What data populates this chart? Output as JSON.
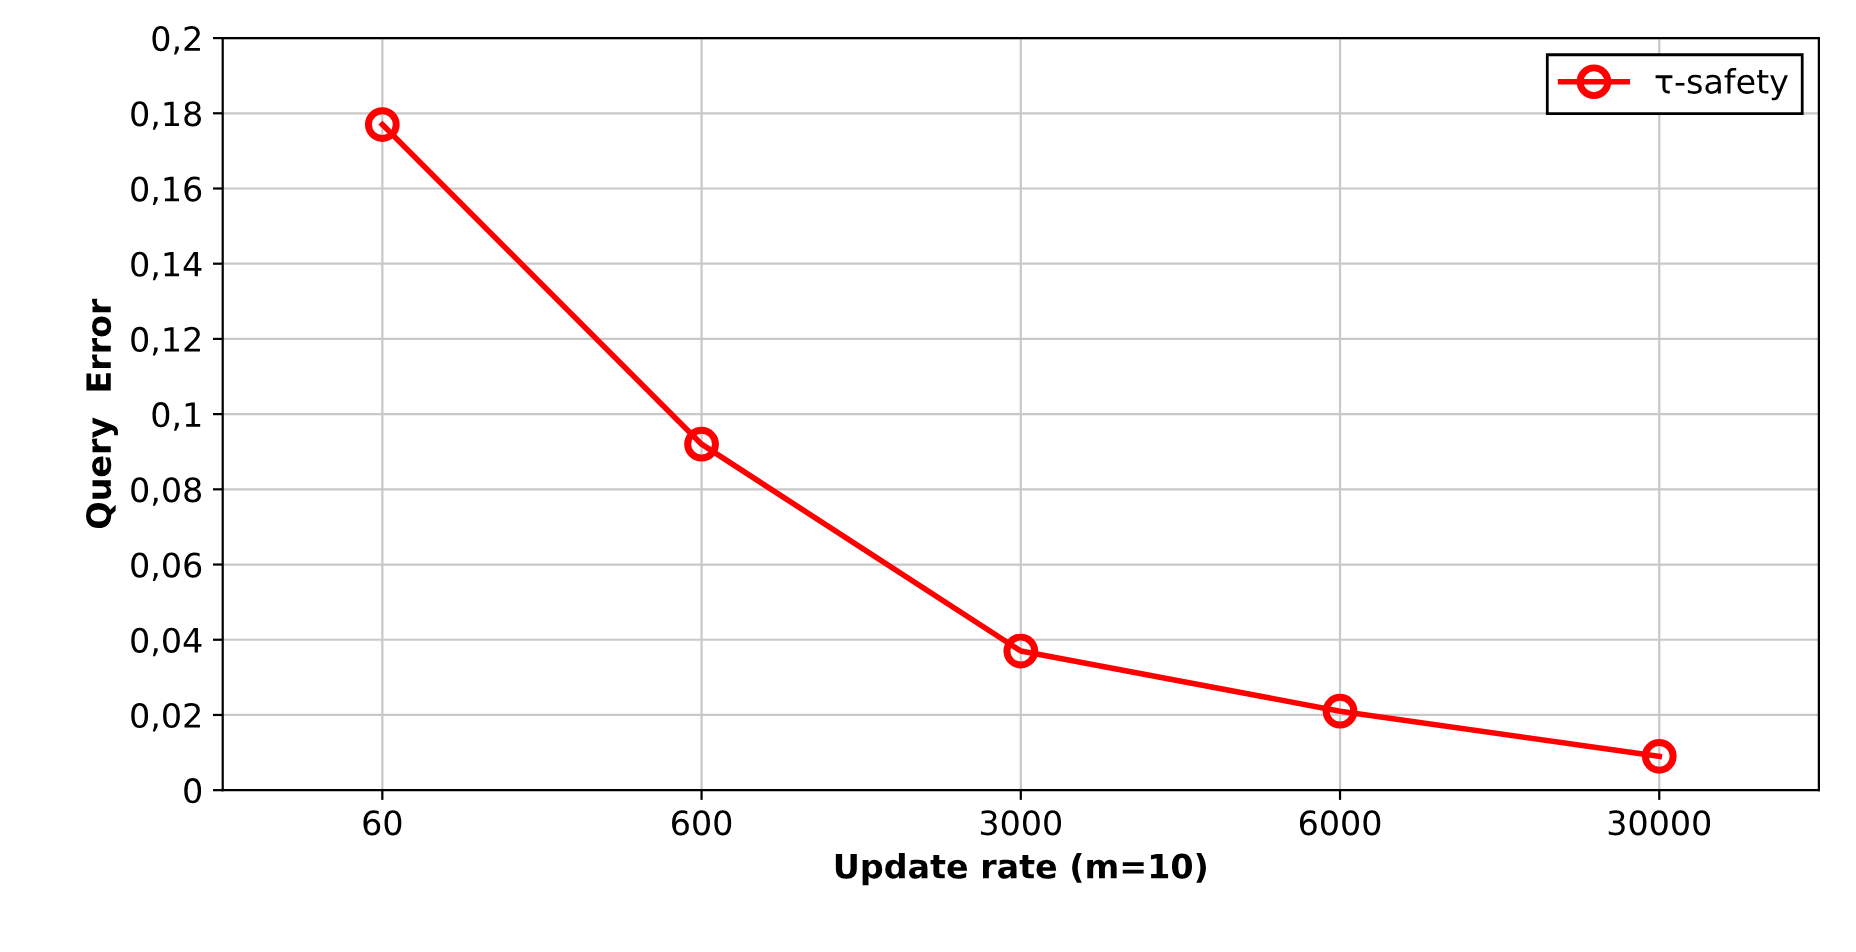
{
  "chart_data": {
    "type": "line",
    "xlabel": "Update rate (m=10)",
    "ylabel": "Query  Error",
    "categories": [
      "60",
      "600",
      "3000",
      "6000",
      "30000"
    ],
    "series": [
      {
        "name": "τ-safety",
        "color": "#ff0000",
        "values": [
          0.177,
          0.092,
          0.037,
          0.021,
          0.009
        ]
      }
    ],
    "ylim": [
      0,
      0.2
    ],
    "yticks": [
      0,
      {
        "value": 0.02,
        "label": "0,02"
      },
      {
        "value": 0.04,
        "label": "0,04"
      },
      {
        "value": 0.06,
        "label": "0,06"
      },
      {
        "value": 0.08,
        "label": "0,08"
      },
      {
        "value": 0.1,
        "label": "0,1"
      },
      {
        "value": 0.12,
        "label": "0,12"
      },
      {
        "value": 0.14,
        "label": "0,14"
      },
      {
        "value": 0.16,
        "label": "0,16"
      },
      {
        "value": 0.18,
        "label": "0,18"
      },
      {
        "value": 0.2,
        "label": "0,2"
      }
    ],
    "grid": true,
    "legend": "top right",
    "marker": "circle",
    "line_style": "solid"
  }
}
